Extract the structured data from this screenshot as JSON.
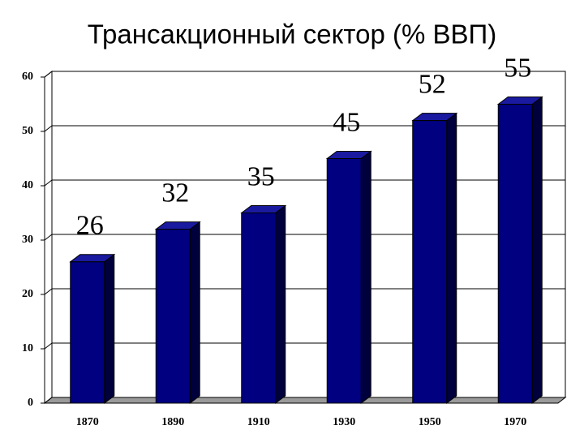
{
  "chart_data": {
    "type": "bar3d",
    "title": "Трансакционный сектор (% ВВП)",
    "categories": [
      "1870",
      "1890",
      "1910",
      "1930",
      "1950",
      "1970"
    ],
    "values": [
      26,
      32,
      35,
      45,
      52,
      55
    ],
    "color": "#000080",
    "ylim": [
      0,
      60
    ],
    "yticks": [
      0,
      10,
      20,
      30,
      40,
      50,
      60
    ],
    "grid": true
  }
}
